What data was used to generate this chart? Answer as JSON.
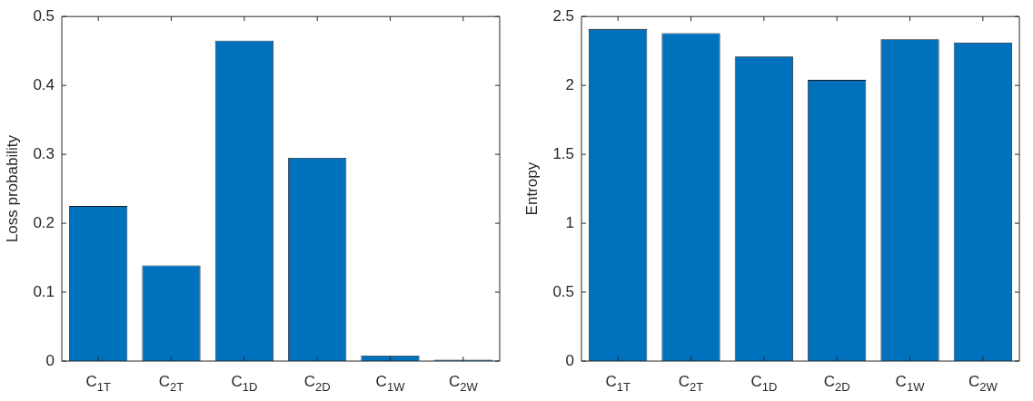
{
  "chart_data": [
    {
      "type": "bar",
      "ylabel": "Loss probability",
      "categories": [
        "C$_{1T}$",
        "C$_{2T}$",
        "C$_{1D}$",
        "C$_{2D}$",
        "C$_{1W}$",
        "C$_{2W}$"
      ],
      "values": [
        0.225,
        0.139,
        0.465,
        0.295,
        0.008,
        0.002
      ],
      "color": "#0072bd",
      "ylim": [
        0,
        0.5
      ],
      "yticks": [
        0,
        0.1,
        0.2,
        0.3,
        0.4,
        0.5
      ],
      "grid": false,
      "legend": false
    },
    {
      "type": "bar",
      "ylabel": "Entropy",
      "categories": [
        "C$_{1T}$",
        "C$_{2T}$",
        "C$_{1D}$",
        "C$_{2D}$",
        "C$_{1W}$",
        "C$_{2W}$"
      ],
      "values": [
        2.41,
        2.38,
        2.21,
        2.04,
        2.335,
        2.31
      ],
      "color": "#0072bd",
      "ylim": [
        0,
        2.5
      ],
      "yticks": [
        0,
        0.5,
        1,
        1.5,
        2,
        2.5
      ],
      "grid": false,
      "legend": false
    }
  ]
}
